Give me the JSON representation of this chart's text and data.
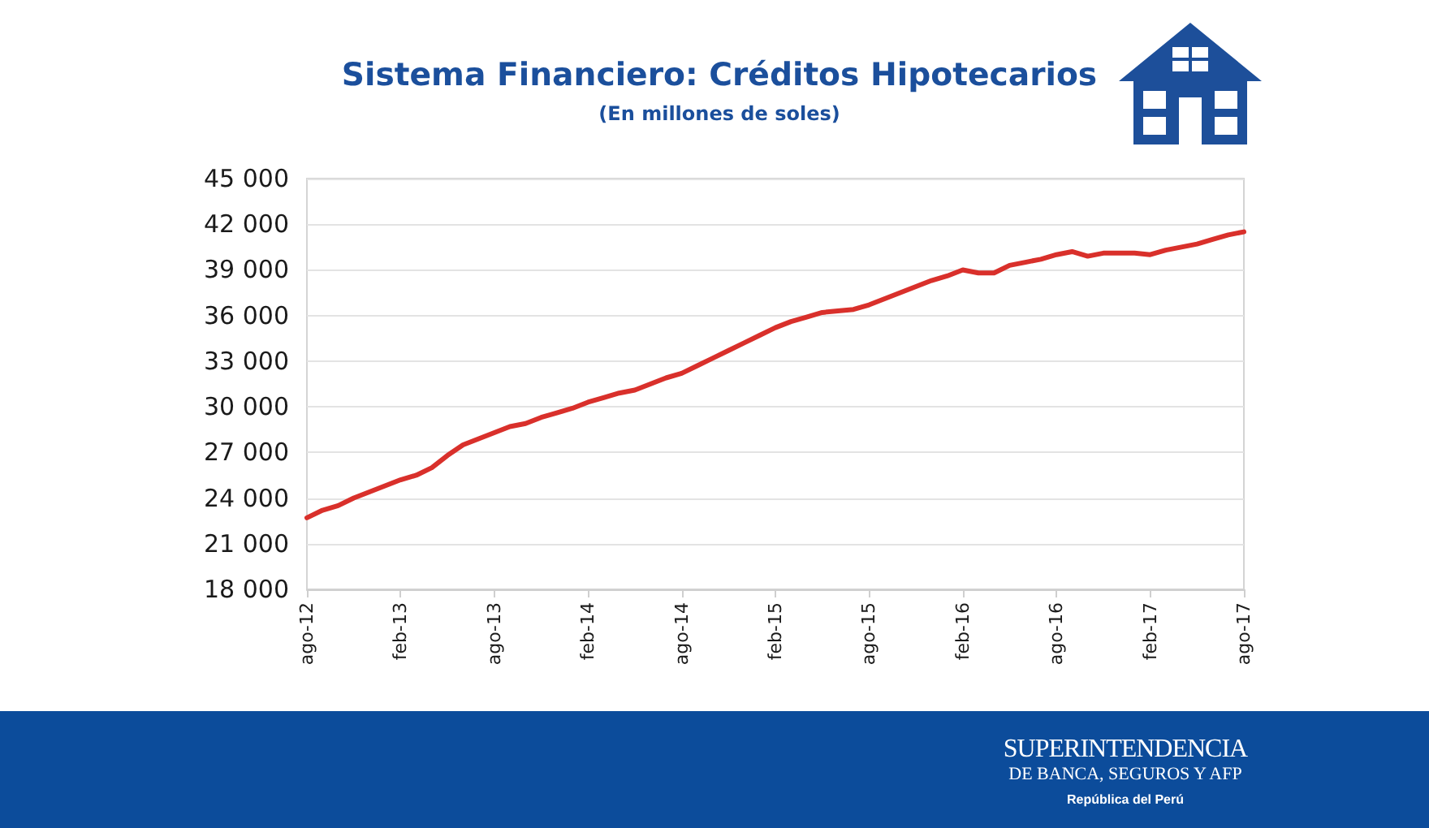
{
  "chart_data": {
    "type": "line",
    "title": "Sistema Financiero: Créditos Hipotecarios",
    "subtitle": "(En millones de soles)",
    "categories": [
      "ago-12",
      null,
      null,
      null,
      null,
      null,
      "feb-13",
      null,
      null,
      null,
      null,
      null,
      "ago-13",
      null,
      null,
      null,
      null,
      null,
      "feb-14",
      null,
      null,
      null,
      null,
      null,
      "ago-14",
      null,
      null,
      null,
      null,
      null,
      "feb-15",
      null,
      null,
      null,
      null,
      null,
      "ago-15",
      null,
      null,
      null,
      null,
      null,
      "feb-16",
      null,
      null,
      null,
      null,
      null,
      "ago-16",
      null,
      null,
      null,
      null,
      null,
      "feb-17",
      null,
      null,
      null,
      null,
      null,
      "ago-17"
    ],
    "series": [
      {
        "color": "#d9302b",
        "values": [
          22700,
          23200,
          23500,
          24000,
          24400,
          24800,
          25200,
          25500,
          26000,
          26800,
          27500,
          27900,
          28300,
          28700,
          28900,
          29300,
          29600,
          29900,
          30300,
          30600,
          30900,
          31100,
          31500,
          31900,
          32200,
          32700,
          33200,
          33700,
          34200,
          34700,
          35200,
          35600,
          35900,
          36200,
          36300,
          36400,
          36700,
          37100,
          37500,
          37900,
          38300,
          38600,
          39000,
          38800,
          38800,
          39300,
          39500,
          39700,
          40000,
          40200,
          39900,
          40100,
          40100,
          40100,
          40000,
          40300,
          40500,
          40700,
          41000,
          41300,
          41500
        ]
      }
    ],
    "ylim": [
      18000,
      45000
    ],
    "yticks": [
      {
        "value": 18000,
        "label": "18 000"
      },
      {
        "value": 21000,
        "label": "21 000"
      },
      {
        "value": 24000,
        "label": "24 000"
      },
      {
        "value": 27000,
        "label": "27 000"
      },
      {
        "value": 30000,
        "label": "30 000"
      },
      {
        "value": 33000,
        "label": "33 000"
      },
      {
        "value": 36000,
        "label": "36 000"
      },
      {
        "value": 39000,
        "label": "39 000"
      },
      {
        "value": 42000,
        "label": "42 000"
      },
      {
        "value": 45000,
        "label": "45 000"
      }
    ],
    "grid": "y",
    "annotations": [
      "SUPERINTENDENCIA",
      "DE BANCA, SEGUROS Y AFP",
      "República del Perú"
    ]
  }
}
